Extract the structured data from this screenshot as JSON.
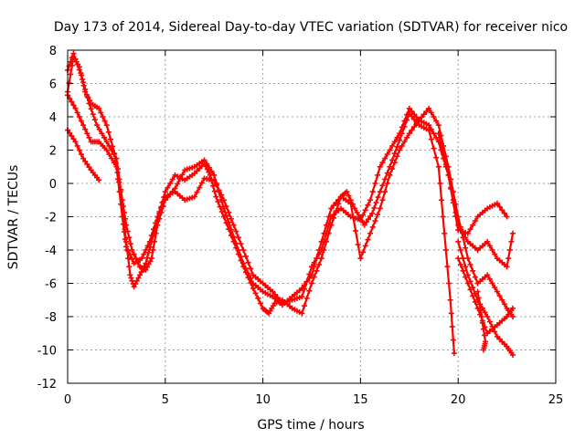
{
  "chart_data": {
    "type": "scatter",
    "title": "Day 173 of 2014, Sidereal Day-to-day VTEC variation (SDTVAR) for receiver nico",
    "xlabel": "GPS time / hours",
    "ylabel": "SDTVAR / TECUs",
    "xlim": [
      0,
      25
    ],
    "ylim": [
      -12,
      8
    ],
    "x_ticks": [
      0,
      5,
      10,
      15,
      20,
      25
    ],
    "y_ticks": [
      8,
      6,
      4,
      2,
      0,
      -2,
      -4,
      -6,
      -8,
      -10,
      -12
    ],
    "grid": true,
    "marker": "+",
    "color": "#ff0000",
    "series": [
      {
        "name": "trace-1",
        "points": [
          [
            0,
            5.5
          ],
          [
            0.3,
            7.6
          ],
          [
            0.6,
            7.0
          ],
          [
            0.9,
            5.5
          ],
          [
            1.2,
            4.8
          ],
          [
            1.6,
            4.5
          ],
          [
            2.0,
            3.5
          ],
          [
            2.4,
            1.8
          ],
          [
            2.7,
            -0.5
          ],
          [
            3.0,
            -3.5
          ],
          [
            3.2,
            -5.5
          ],
          [
            3.4,
            -6.2
          ],
          [
            3.7,
            -5.5
          ],
          [
            4.0,
            -4.8
          ],
          [
            4.3,
            -3.5
          ],
          [
            4.7,
            -1.8
          ],
          [
            5.0,
            -0.5
          ],
          [
            5.5,
            0.5
          ],
          [
            6.0,
            0.2
          ],
          [
            6.5,
            0.6
          ],
          [
            7.0,
            1.2
          ],
          [
            7.3,
            0.5
          ],
          [
            7.6,
            -0.8
          ],
          [
            8.0,
            -2.0
          ],
          [
            8.5,
            -3.5
          ],
          [
            9.0,
            -5.0
          ],
          [
            9.5,
            -6.3
          ],
          [
            10.0,
            -7.5
          ],
          [
            10.3,
            -7.8
          ],
          [
            10.6,
            -7.2
          ],
          [
            11.0,
            -7.0
          ],
          [
            11.5,
            -7.5
          ],
          [
            12.0,
            -7.8
          ],
          [
            12.5,
            -6.0
          ],
          [
            13.0,
            -4.5
          ],
          [
            13.5,
            -2.5
          ],
          [
            14.0,
            -0.8
          ],
          [
            14.3,
            -0.5
          ],
          [
            14.7,
            -1.5
          ],
          [
            15.2,
            -2.5
          ],
          [
            15.6,
            -1.8
          ],
          [
            16.0,
            -0.5
          ],
          [
            16.5,
            1.0
          ],
          [
            17.0,
            2.6
          ],
          [
            17.5,
            4.2
          ],
          [
            18.0,
            3.5
          ],
          [
            18.5,
            3.2
          ],
          [
            19.0,
            1.0
          ],
          [
            19.3,
            -3.0
          ],
          [
            19.6,
            -7.0
          ],
          [
            19.8,
            -10.2
          ]
        ]
      },
      {
        "name": "trace-2",
        "points": [
          [
            0,
            6.8
          ],
          [
            0.3,
            7.8
          ],
          [
            0.7,
            6.5
          ],
          [
            1.1,
            4.8
          ],
          [
            1.5,
            3.5
          ],
          [
            2.0,
            2.5
          ],
          [
            2.5,
            1.5
          ],
          [
            2.8,
            -1.0
          ],
          [
            3.0,
            -2.5
          ],
          [
            3.3,
            -4.0
          ],
          [
            3.7,
            -5.0
          ],
          [
            4.0,
            -5.2
          ],
          [
            4.3,
            -4.5
          ],
          [
            4.6,
            -2.5
          ],
          [
            5.0,
            -1.0
          ],
          [
            5.5,
            -0.3
          ],
          [
            6.0,
            0.8
          ],
          [
            6.5,
            1.0
          ],
          [
            7.0,
            1.4
          ],
          [
            7.5,
            0.5
          ],
          [
            8.0,
            -1.5
          ],
          [
            8.5,
            -3.2
          ],
          [
            9.0,
            -4.8
          ],
          [
            9.5,
            -6.0
          ],
          [
            10.0,
            -6.5
          ],
          [
            10.5,
            -6.8
          ],
          [
            11.0,
            -7.3
          ],
          [
            11.5,
            -6.8
          ],
          [
            12.0,
            -6.3
          ],
          [
            12.5,
            -5.5
          ],
          [
            13.0,
            -3.5
          ],
          [
            13.5,
            -1.5
          ],
          [
            14.0,
            -0.8
          ],
          [
            14.5,
            -1.2
          ],
          [
            15.0,
            -4.5
          ],
          [
            15.5,
            -3.0
          ],
          [
            16.0,
            -1.5
          ],
          [
            16.5,
            0.5
          ],
          [
            17.0,
            2.0
          ],
          [
            17.5,
            3.0
          ],
          [
            18.0,
            3.8
          ],
          [
            18.5,
            4.5
          ],
          [
            19.0,
            3.5
          ],
          [
            19.5,
            1.0
          ],
          [
            20.0,
            -2.0
          ],
          [
            20.5,
            -4.5
          ],
          [
            21.0,
            -6.0
          ],
          [
            21.5,
            -5.5
          ],
          [
            22.0,
            -6.5
          ],
          [
            22.5,
            -7.5
          ],
          [
            22.8,
            -8.0
          ]
        ]
      },
      {
        "name": "trace-3",
        "points": [
          [
            0,
            3.2
          ],
          [
            0.4,
            2.5
          ],
          [
            0.8,
            1.5
          ],
          [
            1.2,
            0.8
          ],
          [
            1.6,
            0.2
          ]
        ]
      },
      {
        "name": "trace-4",
        "points": [
          [
            0,
            5.3
          ],
          [
            0.4,
            4.5
          ],
          [
            0.8,
            3.5
          ],
          [
            1.2,
            2.5
          ],
          [
            1.6,
            2.5
          ],
          [
            2.0,
            2.0
          ],
          [
            2.5,
            1.0
          ],
          [
            2.8,
            -2.0
          ],
          [
            3.0,
            -3.8
          ],
          [
            3.4,
            -4.8
          ],
          [
            3.8,
            -4.5
          ],
          [
            4.2,
            -3.5
          ],
          [
            4.6,
            -2.0
          ],
          [
            5.0,
            -0.8
          ],
          [
            5.5,
            -0.5
          ],
          [
            6.0,
            -1.0
          ],
          [
            6.5,
            -0.8
          ],
          [
            7.0,
            0.3
          ],
          [
            7.5,
            0.2
          ],
          [
            8.0,
            -1.0
          ],
          [
            8.5,
            -2.5
          ],
          [
            9.0,
            -4.0
          ],
          [
            9.5,
            -5.5
          ],
          [
            10.0,
            -6.0
          ],
          [
            10.5,
            -6.5
          ],
          [
            11.0,
            -7.2
          ],
          [
            11.5,
            -7.0
          ],
          [
            12.0,
            -6.8
          ],
          [
            12.5,
            -5.0
          ],
          [
            13.0,
            -4.0
          ],
          [
            13.5,
            -2.0
          ],
          [
            14.0,
            -1.5
          ],
          [
            14.5,
            -2.0
          ],
          [
            15.0,
            -2.2
          ],
          [
            15.5,
            -1.0
          ],
          [
            16.0,
            1.0
          ],
          [
            16.5,
            2.0
          ],
          [
            17.0,
            3.0
          ],
          [
            17.5,
            4.5
          ],
          [
            18.0,
            3.8
          ],
          [
            18.5,
            3.5
          ],
          [
            19.0,
            2.5
          ],
          [
            19.5,
            0.5
          ],
          [
            20.0,
            -2.5
          ],
          [
            20.5,
            -3.5
          ],
          [
            21.0,
            -4.0
          ],
          [
            21.5,
            -3.5
          ],
          [
            22.0,
            -4.5
          ],
          [
            22.5,
            -5.0
          ],
          [
            22.8,
            -3.0
          ]
        ]
      },
      {
        "name": "trace-5",
        "points": [
          [
            19.0,
            3.0
          ],
          [
            19.5,
            0.5
          ],
          [
            20.0,
            -2.8
          ],
          [
            20.5,
            -3.0
          ],
          [
            21.0,
            -2.0
          ],
          [
            21.5,
            -1.5
          ],
          [
            22.0,
            -1.2
          ],
          [
            22.5,
            -2.0
          ]
        ]
      },
      {
        "name": "trace-6",
        "points": [
          [
            20.0,
            -3.5
          ],
          [
            20.5,
            -5.5
          ],
          [
            21.0,
            -7.0
          ],
          [
            21.5,
            -8.0
          ],
          [
            22.0,
            -9.2
          ],
          [
            22.5,
            -9.8
          ],
          [
            22.8,
            -10.3
          ]
        ]
      },
      {
        "name": "trace-7",
        "points": [
          [
            20.0,
            -4.5
          ],
          [
            20.5,
            -6.0
          ],
          [
            21.0,
            -7.5
          ],
          [
            21.5,
            -9.0
          ],
          [
            22.0,
            -8.5
          ],
          [
            22.5,
            -8.0
          ],
          [
            22.8,
            -7.5
          ]
        ]
      },
      {
        "name": "trace-8",
        "points": [
          [
            21.0,
            -6.5
          ],
          [
            21.2,
            -8.0
          ],
          [
            21.4,
            -9.5
          ],
          [
            21.3,
            -10.0
          ]
        ]
      }
    ]
  }
}
